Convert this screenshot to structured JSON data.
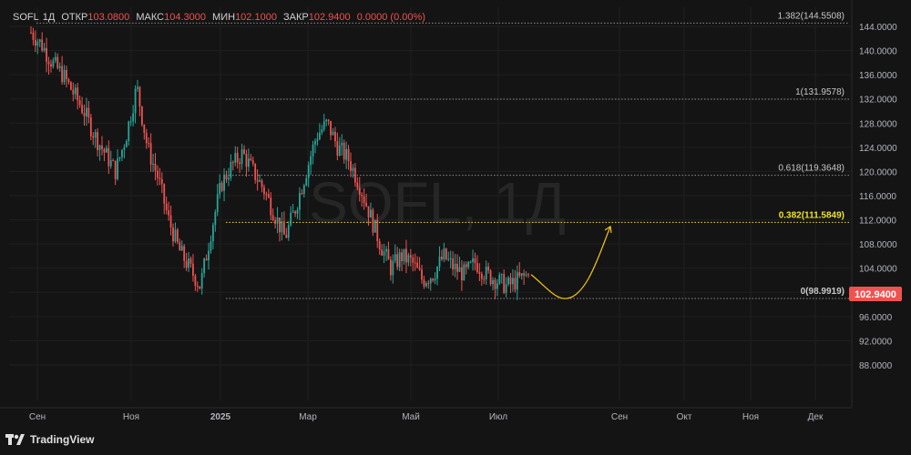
{
  "symbol": "SOFL",
  "interval": "1Д",
  "legend": {
    "open_label": "ОТКР",
    "open": "103.0800",
    "high_label": "МАКС",
    "high": "104.3000",
    "low_label": "МИН",
    "low": "102.1000",
    "close_label": "ЗАКР",
    "close": "102.9400",
    "change": "0.0000 (0.00%)"
  },
  "watermark": "SOFL, 1Д",
  "branding": "TradingView",
  "colors": {
    "background": "#141414",
    "candle_up": "#26a69a",
    "candle_down": "#ef5350",
    "fib_line": "#8a8a8a",
    "fib_highlight": "#f0e030",
    "projection": "#f5c518",
    "price_tag": "#ef5350"
  },
  "price_tag": "102.9400",
  "chart_data": {
    "type": "candlestick",
    "y_axis": {
      "min": 86,
      "max": 146,
      "ticks": [
        "144.0000",
        "140.0000",
        "136.0000",
        "132.0000",
        "128.0000",
        "124.0000",
        "120.0000",
        "116.0000",
        "112.0000",
        "108.0000",
        "104.0000",
        "100.0000",
        "96.0000",
        "92.0000",
        "88.0000"
      ]
    },
    "x_axis_labels": [
      "Сен",
      "Ноя",
      "2025",
      "Мар",
      "Май",
      "Июл",
      "Сен",
      "Окт",
      "Ноя",
      "Дек"
    ],
    "fibonacci": [
      {
        "label": "1.382(144.5508)",
        "level": 1.382,
        "price": 144.5508,
        "highlight": false
      },
      {
        "label": "1(131.9578)",
        "level": 1,
        "price": 131.9578,
        "highlight": false
      },
      {
        "label": "0.618(119.3648)",
        "level": 0.618,
        "price": 119.3648,
        "highlight": false
      },
      {
        "label": "0.382(111.5849)",
        "level": 0.382,
        "price": 111.5849,
        "highlight": true
      },
      {
        "label": "0(98.9919)",
        "level": 0,
        "price": 98.9919,
        "highlight": false
      }
    ],
    "close_path": [
      [
        "Aug",
        143
      ],
      [
        "Aug",
        141
      ],
      [
        "Sep",
        138
      ],
      [
        "Sep",
        136
      ],
      [
        "Sep",
        133
      ],
      [
        "Oct",
        130
      ],
      [
        "Oct",
        126
      ],
      [
        "Oct",
        123
      ],
      [
        "Oct",
        120
      ],
      [
        "Nov",
        126
      ],
      [
        "Nov",
        134
      ],
      [
        "Nov",
        124
      ],
      [
        "Nov",
        119
      ],
      [
        "Nov",
        112
      ],
      [
        "Dec",
        107
      ],
      [
        "Dec",
        104
      ],
      [
        "Dec",
        101
      ],
      [
        "Dec",
        110
      ],
      [
        "Dec",
        118
      ],
      [
        "2025",
        121
      ],
      [
        "2025",
        123
      ],
      [
        "2025",
        120
      ],
      [
        "Feb",
        117
      ],
      [
        "Feb",
        113
      ],
      [
        "Feb",
        109
      ],
      [
        "Feb",
        114
      ],
      [
        "Feb",
        120
      ],
      [
        "Mar",
        126
      ],
      [
        "Mar",
        128
      ],
      [
        "Mar",
        124
      ],
      [
        "Mar",
        122
      ],
      [
        "Mar",
        118
      ],
      [
        "Mar",
        113
      ],
      [
        "Apr",
        108
      ],
      [
        "Apr",
        104
      ],
      [
        "Apr",
        106
      ],
      [
        "Apr",
        105
      ],
      [
        "May",
        102
      ],
      [
        "May",
        103
      ],
      [
        "May",
        106
      ],
      [
        "May",
        104
      ],
      [
        "Jun",
        103
      ],
      [
        "Jun",
        105
      ],
      [
        "Jun",
        103
      ],
      [
        "Jun",
        102
      ],
      [
        "Jul",
        101
      ],
      [
        "Jul",
        102
      ],
      [
        "Jul",
        102.94
      ]
    ],
    "projection": {
      "from": 102.94,
      "trough": 99,
      "to": 111.5
    },
    "last_price": 102.94
  }
}
